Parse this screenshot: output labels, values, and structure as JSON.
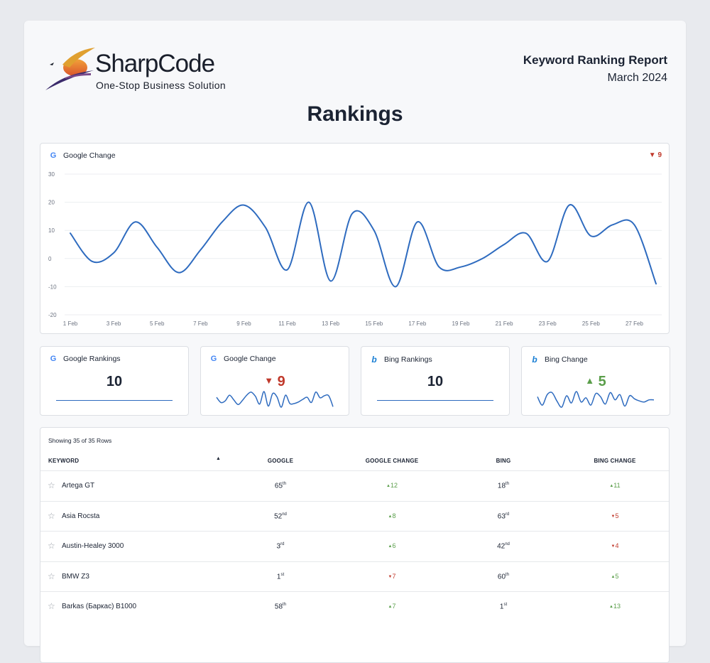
{
  "brand": {
    "name": "SharpCode",
    "tagline": "One-Stop Business Solution",
    "colors": {
      "accent": "#2e6bbf",
      "down": "#c0392b",
      "up": "#5a9e4a"
    }
  },
  "report": {
    "title": "Keyword Ranking Report",
    "date": "March 2024"
  },
  "page": {
    "title": "Rankings"
  },
  "main_chart": {
    "label": "Google Change",
    "icon": "google-icon",
    "delta": {
      "direction": "down",
      "value": "9"
    }
  },
  "chart_data": {
    "type": "line",
    "title": "Google Change",
    "x_ticks": [
      "1 Feb",
      "3 Feb",
      "5 Feb",
      "7 Feb",
      "9 Feb",
      "11 Feb",
      "13 Feb",
      "15 Feb",
      "17 Feb",
      "19 Feb",
      "21 Feb",
      "23 Feb",
      "25 Feb",
      "27 Feb"
    ],
    "y_ticks": [
      30,
      20,
      10,
      0,
      -10,
      -20
    ],
    "ylim": [
      -20,
      30
    ],
    "grid": true,
    "series": [
      {
        "x": [
          1,
          2,
          3,
          4,
          5,
          6,
          7,
          8,
          9,
          10,
          11,
          12,
          13,
          14,
          15,
          16,
          17,
          18,
          19,
          20,
          21,
          22,
          23,
          24,
          25,
          26,
          27,
          28
        ],
        "values": [
          9,
          -1,
          2,
          13,
          4,
          -5,
          3,
          13,
          19,
          11,
          -4,
          20,
          -8,
          16,
          10,
          -10,
          13,
          -3,
          -3,
          0,
          5,
          9,
          -1,
          19,
          8,
          12,
          12,
          -9
        ]
      }
    ]
  },
  "metrics": [
    {
      "label": "Google Rankings",
      "icon": "google-icon",
      "value": "10"
    },
    {
      "label": "Google Change",
      "icon": "google-icon",
      "value": "9",
      "direction": "down"
    },
    {
      "label": "Bing Rankings",
      "icon": "bing-icon",
      "value": "10"
    },
    {
      "label": "Bing Change",
      "icon": "bing-icon",
      "value": "5",
      "direction": "up"
    }
  ],
  "table": {
    "showing": "Showing 35 of 35 Rows",
    "columns": [
      "KEYWORD",
      "GOOGLE",
      "GOOGLE CHANGE",
      "BING",
      "BING CHANGE"
    ],
    "rows": [
      {
        "keyword": "Artega GT",
        "google": "65",
        "google_sfx": "th",
        "google_change": "12",
        "google_change_dir": "up",
        "bing": "18",
        "bing_sfx": "th",
        "bing_change": "11",
        "bing_change_dir": "up"
      },
      {
        "keyword": "Asia Rocsta",
        "google": "52",
        "google_sfx": "nd",
        "google_change": "8",
        "google_change_dir": "up",
        "bing": "63",
        "bing_sfx": "rd",
        "bing_change": "5",
        "bing_change_dir": "down"
      },
      {
        "keyword": "Austin-Healey 3000",
        "google": "3",
        "google_sfx": "rd",
        "google_change": "6",
        "google_change_dir": "up",
        "bing": "42",
        "bing_sfx": "nd",
        "bing_change": "4",
        "bing_change_dir": "down"
      },
      {
        "keyword": "BMW Z3",
        "google": "1",
        "google_sfx": "st",
        "google_change": "7",
        "google_change_dir": "down",
        "bing": "60",
        "bing_sfx": "th",
        "bing_change": "5",
        "bing_change_dir": "up"
      },
      {
        "keyword": "Barkas (Баркас) B1000",
        "google": "58",
        "google_sfx": "th",
        "google_change": "7",
        "google_change_dir": "up",
        "bing": "1",
        "bing_sfx": "st",
        "bing_change": "13",
        "bing_change_dir": "up"
      }
    ]
  }
}
